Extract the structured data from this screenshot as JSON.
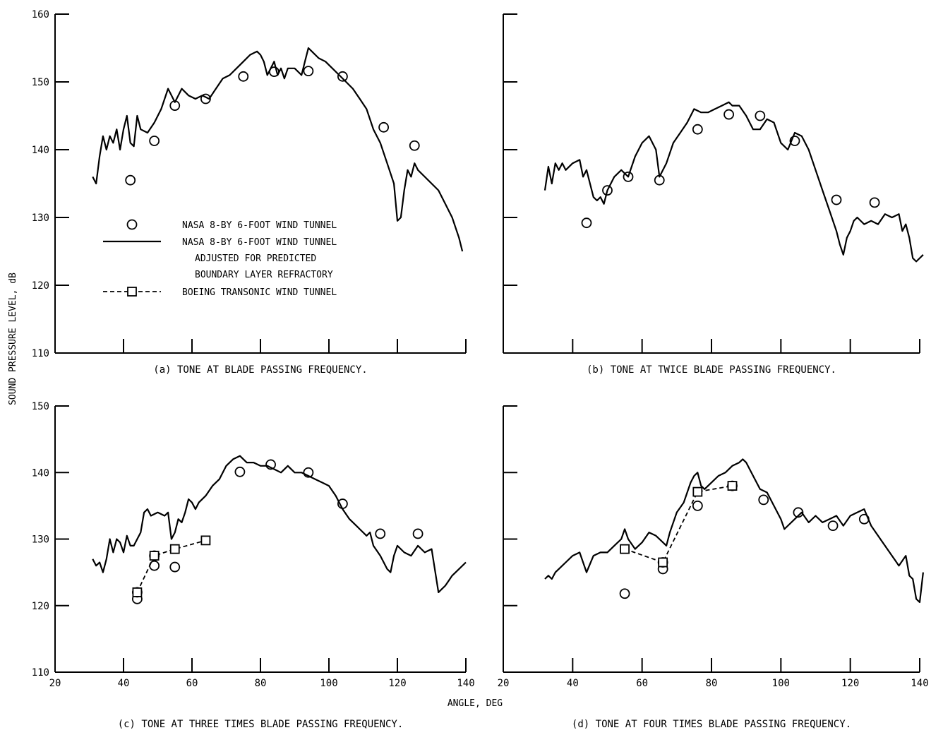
{
  "figure": {
    "ylabel": "SOUND PRESSURE LEVEL, dB",
    "xlabel": "ANGLE, DEG"
  },
  "legend": {
    "items": [
      {
        "kind": "circle",
        "label": "NASA 8-BY 6-FOOT WIND TUNNEL"
      },
      {
        "kind": "solid-line",
        "label": "NASA 8-BY 6-FOOT WIND TUNNEL",
        "label_lines": [
          "ADJUSTED FOR PREDICTED",
          "BOUNDARY LAYER REFRACTORY"
        ]
      },
      {
        "kind": "dashed-square",
        "label": "BOEING TRANSONIC WIND TUNNEL"
      }
    ]
  },
  "chart_data": [
    {
      "type": "line",
      "panel": "a",
      "caption": "(a) TONE AT BLADE PASSING FREQUENCY.",
      "xlim": [
        20,
        140
      ],
      "ylim": [
        110,
        160
      ],
      "xticks": [],
      "yticks": [
        110,
        120,
        130,
        140,
        150,
        160
      ],
      "xtick_marks": [
        40,
        60,
        80,
        100,
        120,
        140
      ],
      "series": [
        {
          "marker": "circle",
          "x": [
            42,
            49,
            55,
            64,
            75,
            84,
            94,
            104,
            116,
            125
          ],
          "y": [
            135.5,
            141.3,
            146.5,
            147.5,
            150.8,
            151.5,
            151.6,
            150.8,
            143.3,
            140.6
          ]
        },
        {
          "marker": "none",
          "x": [
            31,
            32,
            33,
            34,
            35,
            36,
            37,
            38,
            39,
            40,
            41,
            42,
            43,
            44,
            45,
            47,
            49,
            51,
            53,
            55,
            57,
            59,
            61,
            63,
            65,
            67,
            69,
            71,
            73,
            75,
            77,
            79,
            80,
            81,
            82,
            83,
            84,
            85,
            86,
            87,
            88,
            90,
            92,
            93,
            94,
            95,
            97,
            99,
            101,
            103,
            105,
            107,
            109,
            111,
            113,
            115,
            117,
            119,
            120,
            121,
            122,
            123,
            124,
            125,
            126,
            128,
            130,
            132,
            134,
            136,
            138,
            139
          ],
          "y": [
            136,
            135,
            139,
            142,
            140,
            142,
            141,
            143,
            140,
            143,
            145,
            141,
            140.5,
            145,
            143,
            142.5,
            144,
            146,
            149,
            147,
            149,
            148,
            147.5,
            148,
            147.5,
            149,
            150.5,
            151,
            152,
            153,
            154,
            154.5,
            154,
            153,
            151,
            152,
            153,
            151,
            152,
            150.5,
            152,
            152,
            151,
            153,
            155,
            154.5,
            153.5,
            153,
            152,
            151,
            150,
            149,
            147.5,
            146,
            143,
            141,
            138,
            135,
            129.5,
            130,
            134,
            137,
            136,
            138,
            137,
            136,
            135,
            134,
            132,
            130,
            127,
            125
          ]
        }
      ]
    },
    {
      "type": "line",
      "panel": "b",
      "caption": "(b) TONE AT TWICE BLADE PASSING FREQUENCY.",
      "xlim": [
        20,
        140
      ],
      "ylim": [
        110,
        160
      ],
      "xticks": [],
      "yticks": [],
      "ytick_marks": [
        120,
        130,
        140,
        150,
        160
      ],
      "xtick_marks": [
        40,
        60,
        80,
        100,
        120,
        140
      ],
      "series": [
        {
          "marker": "circle",
          "x": [
            44,
            50,
            56,
            65,
            76,
            85,
            94,
            104,
            116,
            127
          ],
          "y": [
            129.2,
            134,
            136,
            135.5,
            143,
            145.2,
            145,
            141.3,
            132.6,
            132.2
          ]
        },
        {
          "marker": "none",
          "x": [
            32,
            33,
            34,
            35,
            36,
            37,
            38,
            40,
            42,
            43,
            44,
            45,
            46,
            47,
            48,
            49,
            50,
            52,
            54,
            56,
            58,
            60,
            62,
            64,
            65,
            66,
            67,
            69,
            71,
            73,
            75,
            77,
            79,
            81,
            83,
            85,
            86,
            88,
            90,
            92,
            94,
            96,
            98,
            100,
            102,
            104,
            106,
            108,
            110,
            112,
            114,
            116,
            117,
            118,
            119,
            120,
            121,
            122,
            124,
            126,
            128,
            130,
            132,
            134,
            135,
            136,
            137,
            138,
            139,
            140,
            141
          ],
          "y": [
            134,
            137.5,
            135,
            138,
            137,
            138,
            137,
            138,
            138.5,
            136,
            137,
            135,
            133,
            132.5,
            133,
            132,
            134,
            136,
            137,
            136,
            139,
            141,
            142,
            140,
            136,
            137,
            138,
            141,
            142.5,
            144,
            146,
            145.5,
            145.5,
            146,
            146.5,
            147,
            146.5,
            146.5,
            145,
            143,
            143,
            144.5,
            144,
            141,
            140,
            142.5,
            142,
            140,
            137,
            134,
            131,
            128,
            126,
            124.5,
            127,
            128,
            129.5,
            130,
            129,
            129.5,
            129,
            130.5,
            130,
            130.5,
            128,
            129,
            127,
            124,
            123.5,
            124,
            124.5
          ]
        }
      ]
    },
    {
      "type": "line",
      "panel": "c",
      "caption": "(c) TONE AT THREE TIMES BLADE PASSING FREQUENCY.",
      "xlim": [
        20,
        140
      ],
      "ylim": [
        110,
        150
      ],
      "xticks": [
        20,
        40,
        60,
        80,
        100,
        120,
        140
      ],
      "yticks": [
        110,
        120,
        130,
        140,
        150
      ],
      "series": [
        {
          "marker": "circle",
          "x": [
            44,
            44,
            49,
            49,
            55,
            74,
            83,
            94,
            104,
            115,
            126
          ],
          "y": [
            121,
            122,
            126,
            127.5,
            125.8,
            140.1,
            141.2,
            140,
            135.3,
            130.8,
            130.8
          ]
        },
        {
          "marker": "none",
          "x": [
            31,
            32,
            33,
            34,
            35,
            36,
            37,
            38,
            39,
            40,
            41,
            42,
            43,
            44,
            45,
            46,
            47,
            48,
            50,
            52,
            53,
            54,
            55,
            56,
            57,
            58,
            59,
            60,
            61,
            62,
            64,
            66,
            68,
            70,
            72,
            74,
            76,
            78,
            80,
            82,
            84,
            86,
            88,
            90,
            92,
            94,
            96,
            98,
            100,
            102,
            104,
            106,
            108,
            110,
            111,
            112,
            113,
            115,
            117,
            118,
            119,
            120,
            122,
            124,
            126,
            128,
            130,
            132,
            134,
            136,
            138,
            140
          ],
          "y": [
            127,
            126,
            126.5,
            125,
            127,
            130,
            128,
            130,
            129.5,
            128,
            130.5,
            129,
            129,
            130,
            131,
            134,
            134.5,
            133.5,
            134,
            133.5,
            134,
            130,
            131,
            133,
            132.5,
            134,
            136,
            135.5,
            134.5,
            135.5,
            136.5,
            138,
            139,
            141,
            142,
            142.5,
            141.5,
            141.5,
            141,
            141,
            140.5,
            140,
            141,
            140,
            140,
            139.5,
            139,
            138.5,
            138,
            136.5,
            134.5,
            133,
            132,
            131,
            130.5,
            131,
            129,
            127.5,
            125.5,
            125,
            127.5,
            129,
            128,
            127.5,
            129,
            128,
            128.5,
            122,
            123,
            124.5,
            125.5,
            126.5
          ]
        },
        {
          "marker": "square",
          "dashed": true,
          "x": [
            44,
            49,
            55,
            64
          ],
          "y": [
            122,
            127.5,
            128.5,
            129.8
          ]
        }
      ]
    },
    {
      "type": "line",
      "panel": "d",
      "caption": "(d) TONE AT FOUR TIMES BLADE PASSING FREQUENCY.",
      "xlim": [
        20,
        140
      ],
      "ylim": [
        110,
        150
      ],
      "xticks": [
        20,
        40,
        60,
        80,
        100,
        120,
        140
      ],
      "yticks": [],
      "ytick_marks": [
        120,
        130,
        140,
        150
      ],
      "series": [
        {
          "marker": "circle",
          "x": [
            55,
            66,
            66,
            76,
            86,
            95,
            105,
            115,
            124
          ],
          "y": [
            121.8,
            125.5,
            126.5,
            135,
            138,
            135.9,
            134,
            132,
            133
          ]
        },
        {
          "marker": "none",
          "x": [
            32,
            33,
            34,
            35,
            36,
            37,
            38,
            40,
            42,
            44,
            46,
            48,
            50,
            52,
            54,
            55,
            56,
            58,
            60,
            62,
            64,
            66,
            67,
            68,
            70,
            72,
            74,
            75,
            76,
            77,
            78,
            80,
            82,
            84,
            86,
            88,
            89,
            90,
            92,
            94,
            96,
            98,
            100,
            101,
            102,
            104,
            106,
            108,
            110,
            112,
            114,
            116,
            118,
            120,
            122,
            124,
            126,
            128,
            130,
            132,
            134,
            136,
            137,
            138,
            139,
            140,
            141
          ],
          "y": [
            124,
            124.5,
            124,
            125,
            125.5,
            126,
            126.5,
            127.5,
            128,
            125,
            127.5,
            128,
            128,
            129,
            130,
            131.5,
            130,
            128.5,
            129.5,
            131,
            130.5,
            129.5,
            129,
            131,
            134,
            135.5,
            138.5,
            139.5,
            140,
            138,
            137.5,
            138.5,
            139.5,
            140,
            141,
            141.5,
            142,
            141.5,
            139.5,
            137.5,
            137,
            135,
            133,
            131.5,
            132,
            133,
            134,
            132.5,
            133.5,
            132.5,
            133,
            133.5,
            132,
            133.5,
            134,
            134.5,
            132,
            130.5,
            129,
            127.5,
            126,
            127.5,
            124.5,
            124,
            121,
            120.5,
            125
          ]
        },
        {
          "marker": "square",
          "dashed": true,
          "x": [
            55,
            66,
            76,
            86
          ],
          "y": [
            128.5,
            126.5,
            137.1,
            138
          ]
        }
      ]
    }
  ]
}
